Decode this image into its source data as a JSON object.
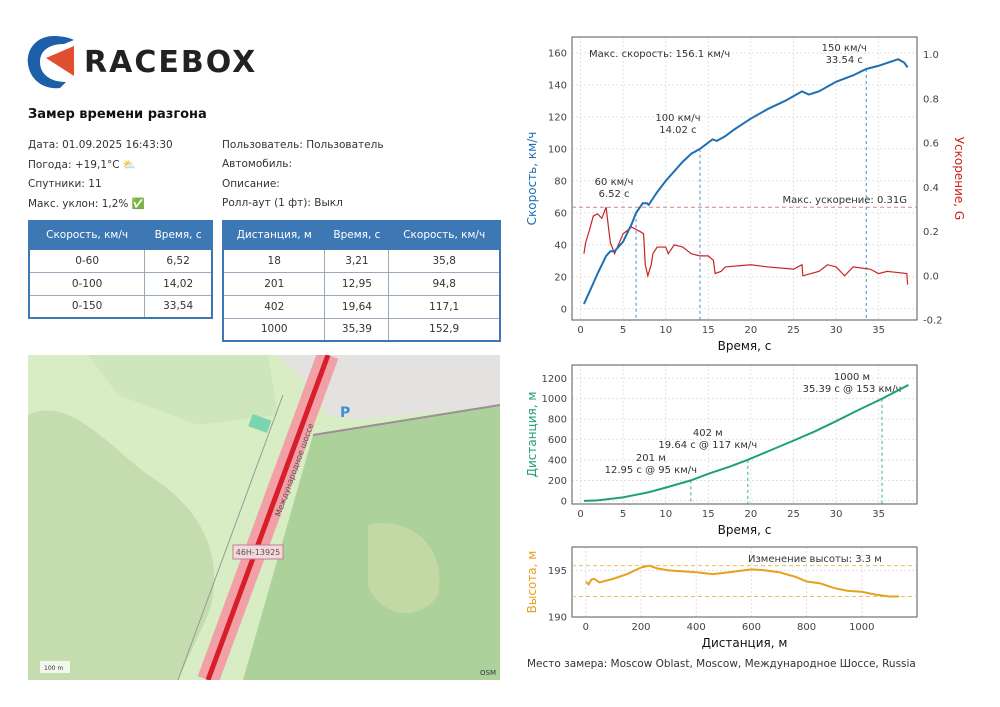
{
  "brand": "RACEBOX",
  "report": {
    "title": "Замер времени разгона"
  },
  "info_left": [
    "Дата: 01.09.2025 16:43:30",
    "Погода: +19,1°C ⛅",
    "Спутники: 11",
    "Макс. уклон: 1,2% ✅"
  ],
  "info_right": [
    "Пользователь: Пользователь",
    "Автомобиль:",
    "Описание:",
    "Ролл-аут (1 фт): Выкл"
  ],
  "speed_table": {
    "headers": [
      "Скорость, км/ч",
      "Время, с"
    ],
    "rows": [
      [
        "0-60",
        "6,52"
      ],
      [
        "0-100",
        "14,02"
      ],
      [
        "0-150",
        "33,54"
      ]
    ]
  },
  "distance_table": {
    "headers": [
      "Дистанция, м",
      "Время, с",
      "Скорость, км/ч"
    ],
    "rows": [
      [
        "18",
        "3,21",
        "35,8"
      ],
      [
        "201",
        "12,95",
        "94,8"
      ],
      [
        "402",
        "19,64",
        "117,1"
      ],
      [
        "1000",
        "35,39",
        "152,9"
      ]
    ]
  },
  "map": {
    "road_name": "Международное шоссе",
    "road_ref": "46Н-13925",
    "scale": "100 m",
    "attribution": "OSM",
    "parking": "P"
  },
  "footer": "Место замера: Moscow Oblast, Moscow, Международное Шоссе, Russia",
  "colors": {
    "speed": "#1f6fb2",
    "accel": "#cc2222",
    "distance": "#1fa07a",
    "altitude": "#e8a020",
    "table_header": "#3d78b5"
  },
  "chart_data": [
    {
      "type": "line",
      "xlabel": "Время, с",
      "ylabel": "Скорость, км/ч",
      "y2label": "Ускорение, G",
      "xlim": [
        -1,
        39.5
      ],
      "ylim": [
        -7,
        170
      ],
      "y2lim": [
        -0.2,
        1.08
      ],
      "xticks": [
        0,
        5,
        10,
        15,
        20,
        25,
        30,
        35
      ],
      "yticks": [
        0,
        20,
        40,
        60,
        80,
        100,
        120,
        140,
        160
      ],
      "y2ticks": [
        -0.2,
        0.0,
        0.2,
        0.4,
        0.6,
        0.8,
        1.0
      ],
      "grid": true,
      "series": [
        {
          "axis": "left",
          "points": [
            [
              0.4,
              3
            ],
            [
              1,
              10
            ],
            [
              2,
              22
            ],
            [
              3,
              33
            ],
            [
              3.5,
              36
            ],
            [
              4,
              36
            ],
            [
              5,
              42
            ],
            [
              6,
              53
            ],
            [
              6.52,
              60
            ],
            [
              7.3,
              66
            ],
            [
              7.8,
              66
            ],
            [
              8,
              65
            ],
            [
              9,
              73
            ],
            [
              10,
              80
            ],
            [
              11,
              86
            ],
            [
              12,
              92
            ],
            [
              13,
              97
            ],
            [
              14.02,
              100
            ],
            [
              15,
              104
            ],
            [
              15.5,
              106
            ],
            [
              16,
              105
            ],
            [
              17,
              108
            ],
            [
              18,
              112
            ],
            [
              20,
              119
            ],
            [
              22,
              125
            ],
            [
              24,
              130
            ],
            [
              26,
              136
            ],
            [
              26.8,
              134
            ],
            [
              28,
              136
            ],
            [
              30,
              142
            ],
            [
              32,
              146
            ],
            [
              33.54,
              150
            ],
            [
              35,
              152
            ],
            [
              37.3,
              156.1
            ],
            [
              38,
              154
            ],
            [
              38.4,
              151
            ]
          ]
        },
        {
          "axis": "right",
          "points": [
            [
              0.4,
              0.1
            ],
            [
              0.6,
              0.15
            ],
            [
              1,
              0.2
            ],
            [
              1.5,
              0.27
            ],
            [
              2,
              0.28
            ],
            [
              2.5,
              0.26
            ],
            [
              3,
              0.31
            ],
            [
              3.5,
              0.15
            ],
            [
              4,
              0.1
            ],
            [
              5,
              0.19
            ],
            [
              6,
              0.22
            ],
            [
              7,
              0.2
            ],
            [
              7.4,
              0.19
            ],
            [
              7.6,
              0.05
            ],
            [
              7.9,
              0.0
            ],
            [
              8.3,
              0.05
            ],
            [
              8.5,
              0.1
            ],
            [
              9,
              0.13
            ],
            [
              10,
              0.13
            ],
            [
              10.3,
              0.1
            ],
            [
              11,
              0.14
            ],
            [
              12,
              0.13
            ],
            [
              13,
              0.1
            ],
            [
              14,
              0.09
            ],
            [
              15,
              0.09
            ],
            [
              15.6,
              0.07
            ],
            [
              15.8,
              0.01
            ],
            [
              16.5,
              0.02
            ],
            [
              17,
              0.04
            ],
            [
              20,
              0.05
            ],
            [
              22,
              0.04
            ],
            [
              25,
              0.03
            ],
            [
              26,
              0.05
            ],
            [
              26.1,
              0.0
            ],
            [
              28,
              0.02
            ],
            [
              29,
              0.05
            ],
            [
              30,
              0.04
            ],
            [
              31,
              0.0
            ],
            [
              32,
              0.04
            ],
            [
              34,
              0.03
            ],
            [
              35,
              0.01
            ],
            [
              36,
              0.02
            ],
            [
              38.3,
              0.01
            ],
            [
              38.4,
              -0.04
            ]
          ]
        }
      ],
      "annotations": [
        {
          "x": 6.52,
          "y": 60,
          "text": [
            "60 км/ч",
            "6.52 с"
          ]
        },
        {
          "x": 14.02,
          "y": 100,
          "text": [
            "100 км/ч",
            "14.02 с"
          ]
        },
        {
          "x": 33.54,
          "y": 150,
          "text": [
            "150 км/ч",
            "33.54 с"
          ]
        }
      ],
      "max_speed_label": "Макс. скорость: 156.1 км/ч",
      "max_accel_label": "Макс. ускорение: 0.31G",
      "max_accel": 0.31
    },
    {
      "type": "line",
      "xlabel": "Время, с",
      "ylabel": "Дистанция, м",
      "xlim": [
        -1,
        39.5
      ],
      "ylim": [
        -30,
        1330
      ],
      "xticks": [
        0,
        5,
        10,
        15,
        20,
        25,
        30,
        35
      ],
      "yticks": [
        0,
        200,
        400,
        600,
        800,
        1000,
        1200
      ],
      "grid": true,
      "series": [
        {
          "points": [
            [
              0.4,
              0
            ],
            [
              2,
              5
            ],
            [
              5,
              35
            ],
            [
              8,
              85
            ],
            [
              10,
              130
            ],
            [
              12.95,
              201
            ],
            [
              15,
              265
            ],
            [
              17.5,
              335
            ],
            [
              19.64,
              402
            ],
            [
              22,
              485
            ],
            [
              25,
              590
            ],
            [
              27.5,
              680
            ],
            [
              30,
              780
            ],
            [
              32.5,
              885
            ],
            [
              35.39,
              1000
            ],
            [
              38.5,
              1135
            ]
          ]
        }
      ],
      "annotations": [
        {
          "x": 12.95,
          "y": 201,
          "text": [
            "201 м",
            "12.95 с @ 95 км/ч"
          ]
        },
        {
          "x": 19.64,
          "y": 402,
          "text": [
            "402 м",
            "19.64 с @ 117 км/ч"
          ]
        },
        {
          "x": 35.39,
          "y": 1000,
          "text": [
            "1000 м",
            "35.39 с @ 153 км/ч"
          ]
        }
      ]
    },
    {
      "type": "line",
      "xlabel": "Дистанция, м",
      "ylabel": "Высота, м",
      "xlim": [
        -50,
        1200
      ],
      "ylim": [
        190,
        197.5
      ],
      "xticks": [
        0,
        200,
        400,
        600,
        800,
        1000
      ],
      "yticks": [
        190,
        195
      ],
      "grid": true,
      "series": [
        {
          "points": [
            [
              0,
              193.8
            ],
            [
              10,
              193.5
            ],
            [
              20,
              194
            ],
            [
              30,
              194.1
            ],
            [
              50,
              193.7
            ],
            [
              100,
              194.1
            ],
            [
              150,
              194.6
            ],
            [
              200,
              195.3
            ],
            [
              230,
              195.5
            ],
            [
              260,
              195.2
            ],
            [
              300,
              195
            ],
            [
              400,
              194.8
            ],
            [
              460,
              194.6
            ],
            [
              520,
              194.8
            ],
            [
              600,
              195.1
            ],
            [
              650,
              195
            ],
            [
              700,
              194.8
            ],
            [
              760,
              194.3
            ],
            [
              800,
              193.8
            ],
            [
              850,
              193.6
            ],
            [
              900,
              193.1
            ],
            [
              950,
              192.8
            ],
            [
              1000,
              192.7
            ],
            [
              1050,
              192.4
            ],
            [
              1100,
              192.2
            ],
            [
              1135,
              192.2
            ]
          ]
        }
      ],
      "ref_lines": [
        195.5,
        192.2
      ],
      "annotation": "Изменение высоты: 3.3 м"
    }
  ]
}
